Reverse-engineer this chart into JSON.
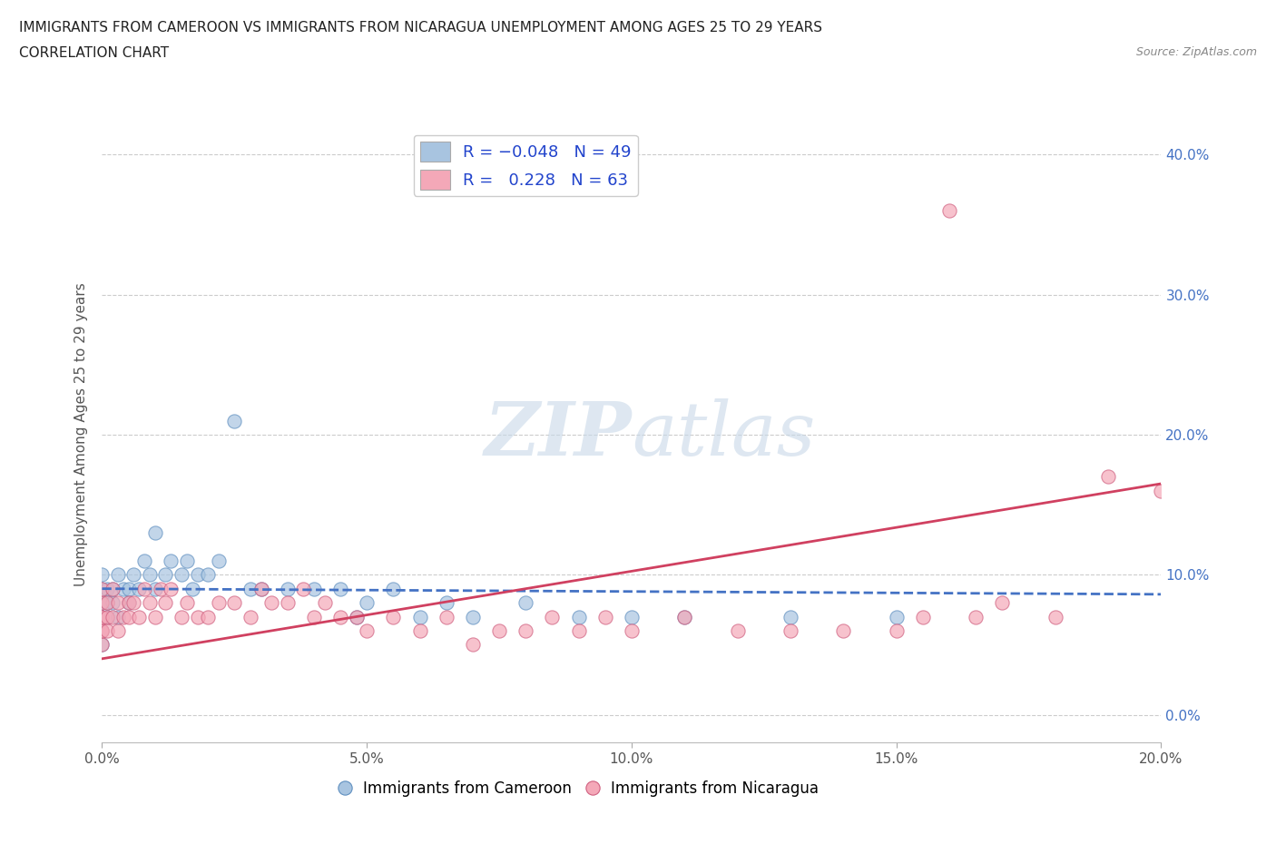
{
  "title_line1": "IMMIGRANTS FROM CAMEROON VS IMMIGRANTS FROM NICARAGUA UNEMPLOYMENT AMONG AGES 25 TO 29 YEARS",
  "title_line2": "CORRELATION CHART",
  "source_text": "Source: ZipAtlas.com",
  "ylabel": "Unemployment Among Ages 25 to 29 years",
  "xlim": [
    0.0,
    0.2
  ],
  "ylim": [
    -0.02,
    0.42
  ],
  "xticks": [
    0.0,
    0.05,
    0.1,
    0.15,
    0.2
  ],
  "xtick_labels": [
    "0.0%",
    "5.0%",
    "10.0%",
    "15.0%",
    "20.0%"
  ],
  "yticks": [
    0.0,
    0.1,
    0.2,
    0.3,
    0.4
  ],
  "cameroon_color": "#a8c4e0",
  "cameroon_edge_color": "#6090c0",
  "nicaragua_color": "#f4a8b8",
  "nicaragua_edge_color": "#d06080",
  "cameroon_line_color": "#4472c4",
  "nicaragua_line_color": "#d04060",
  "watermark_color": "#c8d8e8",
  "R_cameroon": -0.048,
  "N_cameroon": 49,
  "R_nicaragua": 0.228,
  "N_nicaragua": 63,
  "cameroon_x": [
    0.0,
    0.0,
    0.0,
    0.0,
    0.0,
    0.0,
    0.0,
    0.001,
    0.001,
    0.001,
    0.002,
    0.002,
    0.003,
    0.003,
    0.004,
    0.005,
    0.005,
    0.006,
    0.007,
    0.008,
    0.009,
    0.01,
    0.01,
    0.012,
    0.013,
    0.015,
    0.016,
    0.017,
    0.018,
    0.02,
    0.022,
    0.025,
    0.028,
    0.03,
    0.035,
    0.04,
    0.045,
    0.048,
    0.05,
    0.055,
    0.06,
    0.065,
    0.07,
    0.08,
    0.09,
    0.1,
    0.11,
    0.13,
    0.15
  ],
  "cameroon_y": [
    0.08,
    0.07,
    0.09,
    0.06,
    0.1,
    0.05,
    0.08,
    0.09,
    0.07,
    0.08,
    0.08,
    0.09,
    0.07,
    0.1,
    0.09,
    0.08,
    0.09,
    0.1,
    0.09,
    0.11,
    0.1,
    0.09,
    0.13,
    0.1,
    0.11,
    0.1,
    0.11,
    0.09,
    0.1,
    0.1,
    0.11,
    0.21,
    0.09,
    0.09,
    0.09,
    0.09,
    0.09,
    0.07,
    0.08,
    0.09,
    0.07,
    0.08,
    0.07,
    0.08,
    0.07,
    0.07,
    0.07,
    0.07,
    0.07
  ],
  "nicaragua_x": [
    0.0,
    0.0,
    0.0,
    0.0,
    0.0,
    0.0,
    0.0,
    0.001,
    0.001,
    0.001,
    0.002,
    0.002,
    0.003,
    0.003,
    0.004,
    0.005,
    0.005,
    0.006,
    0.007,
    0.008,
    0.009,
    0.01,
    0.011,
    0.012,
    0.013,
    0.015,
    0.016,
    0.018,
    0.02,
    0.022,
    0.025,
    0.028,
    0.03,
    0.032,
    0.035,
    0.038,
    0.04,
    0.042,
    0.045,
    0.048,
    0.05,
    0.055,
    0.06,
    0.065,
    0.07,
    0.075,
    0.08,
    0.085,
    0.09,
    0.095,
    0.1,
    0.11,
    0.12,
    0.13,
    0.14,
    0.15,
    0.155,
    0.16,
    0.165,
    0.17,
    0.18,
    0.19,
    0.2
  ],
  "nicaragua_y": [
    0.07,
    0.06,
    0.08,
    0.05,
    0.09,
    0.06,
    0.07,
    0.07,
    0.08,
    0.06,
    0.07,
    0.09,
    0.06,
    0.08,
    0.07,
    0.07,
    0.08,
    0.08,
    0.07,
    0.09,
    0.08,
    0.07,
    0.09,
    0.08,
    0.09,
    0.07,
    0.08,
    0.07,
    0.07,
    0.08,
    0.08,
    0.07,
    0.09,
    0.08,
    0.08,
    0.09,
    0.07,
    0.08,
    0.07,
    0.07,
    0.06,
    0.07,
    0.06,
    0.07,
    0.05,
    0.06,
    0.06,
    0.07,
    0.06,
    0.07,
    0.06,
    0.07,
    0.06,
    0.06,
    0.06,
    0.06,
    0.07,
    0.36,
    0.07,
    0.08,
    0.07,
    0.17,
    0.16
  ]
}
